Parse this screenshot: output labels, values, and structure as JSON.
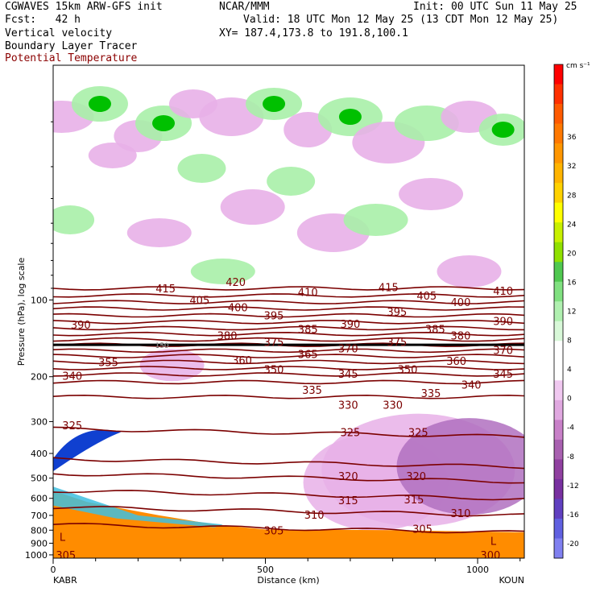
{
  "header": {
    "line1_left": "CGWAVES 15km ARW-GFS init",
    "line1_mid": "NCAR/MMM",
    "line1_right": "Init: 00 UTC Sun 11 May 25",
    "line2_left": "Fcst:   42 h",
    "line2_right": "Valid: 18 UTC Mon 12 May 25 (13 CDT Mon 12 May 25)",
    "line3_left": "Vertical velocity",
    "line3_right": "XY= 187.4,173.8 to 191.8,100.1",
    "line4_left": "Boundary Layer Tracer",
    "line5_left": "Potential Temperature"
  },
  "colors": {
    "theta": "#7b0000",
    "tracer_high": "#ff8c00",
    "strong_up": "#00c000",
    "up": "#a8f0a8",
    "down": "#e8b0e8",
    "strong_down": "#b070c0"
  },
  "chart_data": {
    "type": "cross-section",
    "xlabel": "Distance (km)",
    "ylabel": "Pressure (hPa), log scale",
    "x_ticks": [
      "0",
      "500",
      "1000"
    ],
    "xlim": [
      0,
      1110
    ],
    "y_ticks": [
      "100",
      "200",
      "300",
      "400",
      "500",
      "600",
      "700",
      "800",
      "900",
      "1000"
    ],
    "y_scale": "log",
    "ylim": [
      1030,
      12
    ],
    "left_endpoint": "KABR",
    "right_endpoint": "KOUN",
    "colorbar": {
      "units": "cm s⁻¹",
      "labels": [
        "36",
        "32",
        "28",
        "24",
        "20",
        "16",
        "12",
        "8",
        "4",
        "0",
        "-4",
        "-8",
        "-12",
        "-16",
        "-20"
      ],
      "colors": [
        "#ff0000",
        "#ff3000",
        "#ff5a00",
        "#ff7800",
        "#ff9600",
        "#ffb400",
        "#ffd200",
        "#ffff00",
        "#c8f000",
        "#90e000",
        "#50c850",
        "#80e080",
        "#b0f0b0",
        "#d8f8d8",
        "#ffffff",
        "#ffffff",
        "#f0c8f0",
        "#e0a8e0",
        "#c880c8",
        "#a860b0",
        "#9040a0",
        "#7830a0",
        "#6040c0",
        "#6060e0",
        "#8080f0"
      ]
    },
    "theta_labels": [
      {
        "v": "420",
        "x": 430,
        "p": 85
      },
      {
        "v": "415",
        "x": 265,
        "p": 90
      },
      {
        "v": "415",
        "x": 790,
        "p": 89
      },
      {
        "v": "410",
        "x": 600,
        "p": 93
      },
      {
        "v": "410",
        "x": 1060,
        "p": 92
      },
      {
        "v": "405",
        "x": 345,
        "p": 100
      },
      {
        "v": "405",
        "x": 880,
        "p": 96
      },
      {
        "v": "400",
        "x": 435,
        "p": 107
      },
      {
        "v": "400",
        "x": 960,
        "p": 102
      },
      {
        "v": "395",
        "x": 520,
        "p": 115
      },
      {
        "v": "395",
        "x": 810,
        "p": 111
      },
      {
        "v": "390",
        "x": 65,
        "p": 125
      },
      {
        "v": "390",
        "x": 700,
        "p": 124
      },
      {
        "v": "390",
        "x": 1060,
        "p": 121
      },
      {
        "v": "385",
        "x": 600,
        "p": 130
      },
      {
        "v": "385",
        "x": 900,
        "p": 130
      },
      {
        "v": "380",
        "x": 410,
        "p": 138
      },
      {
        "v": "380",
        "x": 960,
        "p": 138
      },
      {
        "v": "375",
        "x": 520,
        "p": 146
      },
      {
        "v": "375",
        "x": 810,
        "p": 146
      },
      {
        "v": "370",
        "x": 695,
        "p": 155
      },
      {
        "v": "370",
        "x": 1060,
        "p": 157
      },
      {
        "v": "365",
        "x": 600,
        "p": 163
      },
      {
        "v": "360",
        "x": 445,
        "p": 172
      },
      {
        "v": "360",
        "x": 950,
        "p": 173
      },
      {
        "v": "355",
        "x": 130,
        "p": 175
      },
      {
        "v": "350",
        "x": 520,
        "p": 187
      },
      {
        "v": "350",
        "x": 835,
        "p": 187
      },
      {
        "v": "345",
        "x": 695,
        "p": 195
      },
      {
        "v": "345",
        "x": 1060,
        "p": 195
      },
      {
        "v": "340",
        "x": 45,
        "p": 198
      },
      {
        "v": "340",
        "x": 985,
        "p": 215
      },
      {
        "v": "335",
        "x": 610,
        "p": 225
      },
      {
        "v": "335",
        "x": 890,
        "p": 232
      },
      {
        "v": "330",
        "x": 695,
        "p": 258
      },
      {
        "v": "330",
        "x": 800,
        "p": 258
      },
      {
        "v": "325",
        "x": 45,
        "p": 310
      },
      {
        "v": "325",
        "x": 700,
        "p": 330
      },
      {
        "v": "325",
        "x": 860,
        "p": 330
      },
      {
        "v": "320",
        "x": 695,
        "p": 490
      },
      {
        "v": "320",
        "x": 855,
        "p": 490
      },
      {
        "v": "315",
        "x": 695,
        "p": 610
      },
      {
        "v": "315",
        "x": 850,
        "p": 605
      },
      {
        "v": "310",
        "x": 615,
        "p": 695
      },
      {
        "v": "310",
        "x": 960,
        "p": 685
      },
      {
        "v": "305",
        "x": 520,
        "p": 800
      },
      {
        "v": "305",
        "x": 870,
        "p": 790
      },
      {
        "v": "305",
        "x": 30,
        "p": 1000
      },
      {
        "v": "300",
        "x": 1030,
        "p": 1000
      }
    ],
    "tropopause_label": "150",
    "low_marker": "L"
  }
}
